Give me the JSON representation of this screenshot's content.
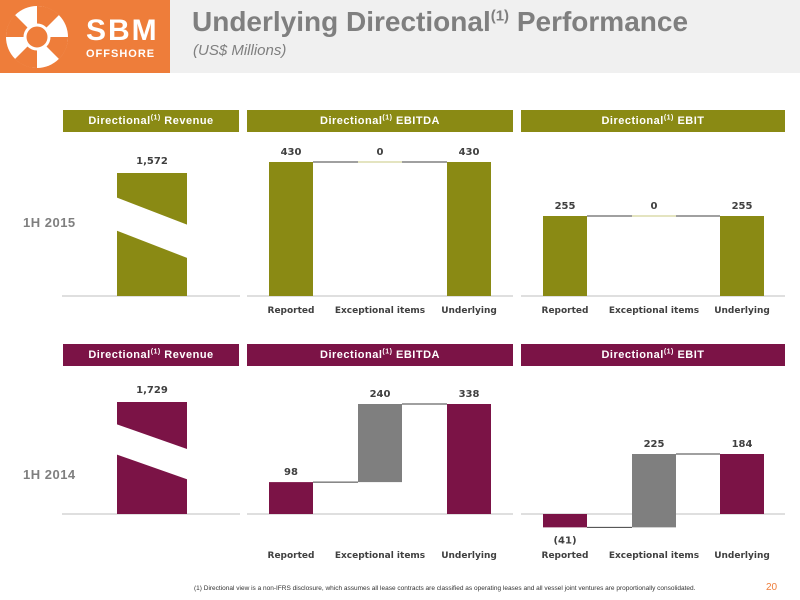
{
  "logo": {
    "name": "SBM",
    "sub": "OFFSHORE"
  },
  "title": {
    "main": "Underlying Directional",
    "sup": "(1)",
    "rest": " Performance",
    "subtitle": "(US$ Millions)"
  },
  "colors": {
    "accent_2015": "#8a8a14",
    "accent_2014": "#7b1346",
    "exceptional": "#7f7f7f",
    "logo": "#ee7d3a"
  },
  "headers": {
    "revenue": {
      "pre": "Directional",
      "sup": "(1)",
      "post": " Revenue"
    },
    "ebitda": {
      "pre": "Directional",
      "sup": "(1)",
      "post": " EBITDA"
    },
    "ebit": {
      "pre": "Directional",
      "sup": "(1)",
      "post": " EBIT"
    }
  },
  "rows": [
    {
      "label": "1H 2015"
    },
    {
      "label": "1H 2014"
    }
  ],
  "chart_data": [
    {
      "type": "bar",
      "period": "1H 2015",
      "metric": "Directional(1) Revenue",
      "values": [
        1572
      ],
      "value_labels": [
        "1,572"
      ],
      "axis_break": true
    },
    {
      "type": "bar",
      "period": "1H 2015",
      "metric": "Directional(1) EBITDA",
      "style": "waterfall",
      "categories": [
        "Reported",
        "Exceptional items",
        "Underlying"
      ],
      "values": [
        430,
        0,
        430
      ],
      "value_labels": [
        "430",
        "0",
        "430"
      ]
    },
    {
      "type": "bar",
      "period": "1H 2015",
      "metric": "Directional(1) EBIT",
      "style": "waterfall",
      "categories": [
        "Reported",
        "Exceptional items",
        "Underlying"
      ],
      "values": [
        255,
        0,
        255
      ],
      "value_labels": [
        "255",
        "0",
        "255"
      ]
    },
    {
      "type": "bar",
      "period": "1H 2014",
      "metric": "Directional(1) Revenue",
      "values": [
        1729
      ],
      "value_labels": [
        "1,729"
      ],
      "axis_break": true
    },
    {
      "type": "bar",
      "period": "1H 2014",
      "metric": "Directional(1) EBITDA",
      "style": "waterfall",
      "categories": [
        "Reported",
        "Exceptional items",
        "Underlying"
      ],
      "values": [
        98,
        240,
        338
      ],
      "value_labels": [
        "98",
        "240",
        "338"
      ]
    },
    {
      "type": "bar",
      "period": "1H 2014",
      "metric": "Directional(1) EBIT",
      "style": "waterfall",
      "categories": [
        "Reported",
        "Exceptional items",
        "Underlying"
      ],
      "values": [
        -41,
        225,
        184
      ],
      "value_labels": [
        "(41)",
        "225",
        "184"
      ]
    }
  ],
  "footnote": "(1) Directional view is a non-IFRS disclosure, which assumes all lease contracts are classified as operating leases and all vessel joint ventures are proportionally consolidated.",
  "page_number": "20"
}
